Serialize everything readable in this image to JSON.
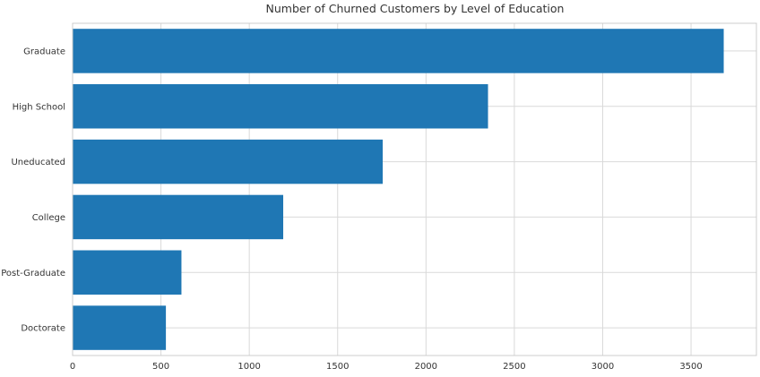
{
  "chart_data": {
    "type": "bar",
    "orientation": "horizontal",
    "title": "Number of Churned Customers by Level of Education",
    "xlabel": "",
    "ylabel": "",
    "categories": [
      "Graduate",
      "High School",
      "Uneducated",
      "College",
      "Post-Graduate",
      "Doctorate"
    ],
    "values": [
      3685,
      2351,
      1755,
      1192,
      616,
      528
    ],
    "xlim": [
      0,
      3870
    ],
    "xticks": [
      0,
      500,
      1000,
      1500,
      2000,
      2500,
      3000,
      3500
    ],
    "grid": true,
    "bar_color": "#1f77b4"
  }
}
